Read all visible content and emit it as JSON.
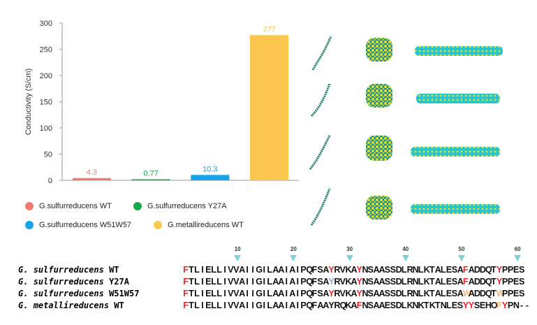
{
  "chart_data": {
    "type": "bar",
    "ylabel": "Conductivity (S/cm)",
    "ylim": [
      0,
      300
    ],
    "yticks": [
      0,
      50,
      100,
      150,
      200,
      250,
      300
    ],
    "grid": false,
    "legend_position": "bottom",
    "series": [
      {
        "name": "G.sulfurreducens WT",
        "value": 4.3,
        "label": "4.3",
        "color": "#f07b72"
      },
      {
        "name": "G.sulfurreducens Y27A",
        "value": 0.77,
        "label": "0.77",
        "color": "#1aa64a"
      },
      {
        "name": "G.sulfurreducens W51W57",
        "value": 10.3,
        "label": "10.3",
        "color": "#1aa3e8"
      },
      {
        "name": "G.metallireducens WT",
        "value": 277,
        "label": "277",
        "color": "#fcc74f"
      }
    ]
  },
  "alignment": {
    "markers": [
      "10",
      "20",
      "30",
      "40",
      "50",
      "60"
    ],
    "marker_color": "#7fd1d8",
    "rows": [
      {
        "genus": "G.",
        "species": "sulfurreducens",
        "strain": "WT",
        "sequence": "FTLIELLIVVAIIGILAAIAIPQFSAYRVKAYNSAASSDLRNLKTALESAFADDQTYPPES"
      },
      {
        "genus": "G.",
        "species": "sulfurreducens",
        "strain": "Y27A",
        "sequence": "FTLIELLIVVAIIGILAAIAIPQFSAYRVKAYNSAASSDLRNLKTALESAFADDQTYPPES"
      },
      {
        "genus": "G.",
        "species": "sulfurreducens",
        "strain": "W51W57",
        "sequence": "FTLIELLIVVAIIGILAAIAIPQFSAYRVKAYNSAASSDLRNLKTALESAWADDQTWPPES"
      },
      {
        "genus": "G.",
        "species": "metallireducens",
        "strain": "WT",
        "sequence": "FTLIELLIVVAIIGILAAIAIPQFAAYRQKAFNSAAESDLKNKTKTNLESYYSEHOFYPN--"
      }
    ],
    "highlight_colors": {
      "red": "#e8262a",
      "blue": "#8fa6d8",
      "orange": "#f3b27a"
    }
  }
}
